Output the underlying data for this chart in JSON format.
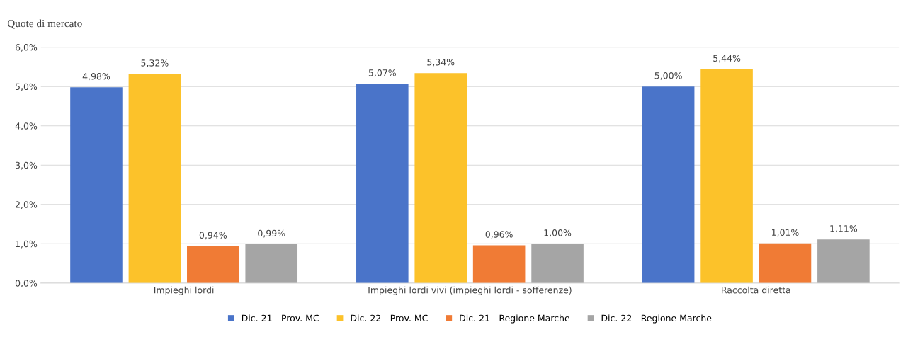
{
  "chart_data": {
    "type": "bar",
    "title": "Quote di mercato",
    "categories": [
      "Impieghi lordi",
      "Impieghi lordi vivi (impieghi lordi - sofferenze)",
      "Raccolta diretta"
    ],
    "series": [
      {
        "name": "Dic. 21 - Prov. MC",
        "color": "#4a74c9",
        "values": [
          4.98,
          5.07,
          5.0
        ],
        "value_labels": [
          "4,98%",
          "5,07%",
          "5,00%"
        ]
      },
      {
        "name": "Dic. 22 - Prov. MC",
        "color": "#fcc22a",
        "values": [
          5.32,
          5.34,
          5.44
        ],
        "value_labels": [
          "5,32%",
          "5,34%",
          "5,44%"
        ]
      },
      {
        "name": "Dic. 21 - Regione Marche",
        "color": "#f07b35",
        "values": [
          0.94,
          0.96,
          1.01
        ],
        "value_labels": [
          "0,94%",
          "0,96%",
          "1,01%"
        ]
      },
      {
        "name": "Dic. 22 - Regione Marche",
        "color": "#a5a5a5",
        "values": [
          0.99,
          1.0,
          1.11
        ],
        "value_labels": [
          "0,99%",
          "1,00%",
          "1,11%"
        ]
      }
    ],
    "ylim": [
      0,
      6
    ],
    "yticks": [
      {
        "value": 0,
        "label": "0,0%"
      },
      {
        "value": 1,
        "label": "1,0%"
      },
      {
        "value": 2,
        "label": "2,0%"
      },
      {
        "value": 3,
        "label": "3,0%"
      },
      {
        "value": 4,
        "label": "4,0%"
      },
      {
        "value": 5,
        "label": "5,0%"
      },
      {
        "value": 6,
        "label": "6,0%"
      }
    ],
    "grid": "y",
    "legend": "bottom"
  }
}
